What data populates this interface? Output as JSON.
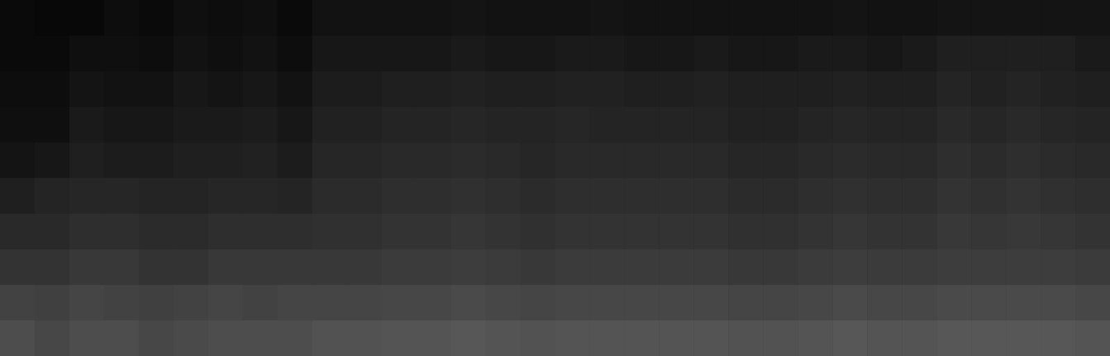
{
  "chart_data": {
    "type": "heatmap",
    "tick_labels": false,
    "color": "#ffffff",
    "color_range": [
      0,
      100
    ],
    "cells": [
      [
        4,
        3,
        3,
        5,
        4,
        6,
        5,
        6,
        4,
        7,
        7,
        7,
        7,
        8,
        7,
        7,
        7,
        8,
        7,
        7,
        7,
        7,
        7,
        7,
        8,
        7,
        7,
        8,
        8,
        8,
        8,
        8
      ],
      [
        4,
        4,
        6,
        6,
        5,
        7,
        6,
        7,
        5,
        9,
        9,
        9,
        9,
        10,
        9,
        9,
        10,
        10,
        9,
        9,
        10,
        9,
        9,
        10,
        10,
        9,
        10,
        12,
        12,
        12,
        12,
        10
      ],
      [
        5,
        5,
        8,
        7,
        7,
        9,
        8,
        9,
        7,
        11,
        11,
        12,
        12,
        13,
        12,
        12,
        13,
        13,
        12,
        12,
        13,
        12,
        12,
        12,
        13,
        12,
        12,
        14,
        13,
        14,
        13,
        12
      ],
      [
        6,
        6,
        10,
        9,
        9,
        10,
        10,
        11,
        9,
        13,
        13,
        14,
        14,
        15,
        14,
        14,
        15,
        14,
        14,
        14,
        14,
        13,
        13,
        14,
        15,
        14,
        14,
        16,
        15,
        16,
        15,
        14
      ],
      [
        8,
        9,
        12,
        11,
        11,
        12,
        12,
        13,
        11,
        15,
        15,
        16,
        16,
        17,
        16,
        15,
        16,
        16,
        16,
        16,
        16,
        15,
        15,
        16,
        17,
        16,
        16,
        18,
        17,
        18,
        17,
        16
      ],
      [
        12,
        14,
        15,
        15,
        14,
        14,
        15,
        15,
        14,
        17,
        17,
        18,
        18,
        19,
        18,
        17,
        18,
        18,
        18,
        18,
        18,
        17,
        17,
        18,
        19,
        18,
        18,
        20,
        19,
        20,
        19,
        18
      ],
      [
        16,
        16,
        18,
        18,
        17,
        17,
        18,
        18,
        18,
        19,
        19,
        20,
        20,
        21,
        20,
        19,
        20,
        20,
        20,
        20,
        20,
        19,
        19,
        20,
        21,
        20,
        20,
        22,
        21,
        22,
        21,
        20
      ],
      [
        20,
        20,
        22,
        22,
        20,
        20,
        22,
        22,
        22,
        22,
        22,
        23,
        23,
        24,
        23,
        22,
        23,
        23,
        23,
        23,
        23,
        22,
        22,
        23,
        24,
        23,
        23,
        24,
        24,
        24,
        24,
        23
      ],
      [
        26,
        25,
        27,
        26,
        25,
        26,
        27,
        26,
        27,
        27,
        27,
        28,
        28,
        29,
        28,
        27,
        28,
        28,
        28,
        28,
        28,
        27,
        27,
        28,
        29,
        28,
        28,
        29,
        29,
        29,
        29,
        28
      ],
      [
        30,
        28,
        30,
        30,
        28,
        29,
        30,
        30,
        30,
        32,
        32,
        33,
        33,
        34,
        33,
        32,
        33,
        33,
        33,
        33,
        33,
        32,
        32,
        33,
        34,
        33,
        33,
        34,
        34,
        34,
        34,
        33
      ]
    ]
  }
}
